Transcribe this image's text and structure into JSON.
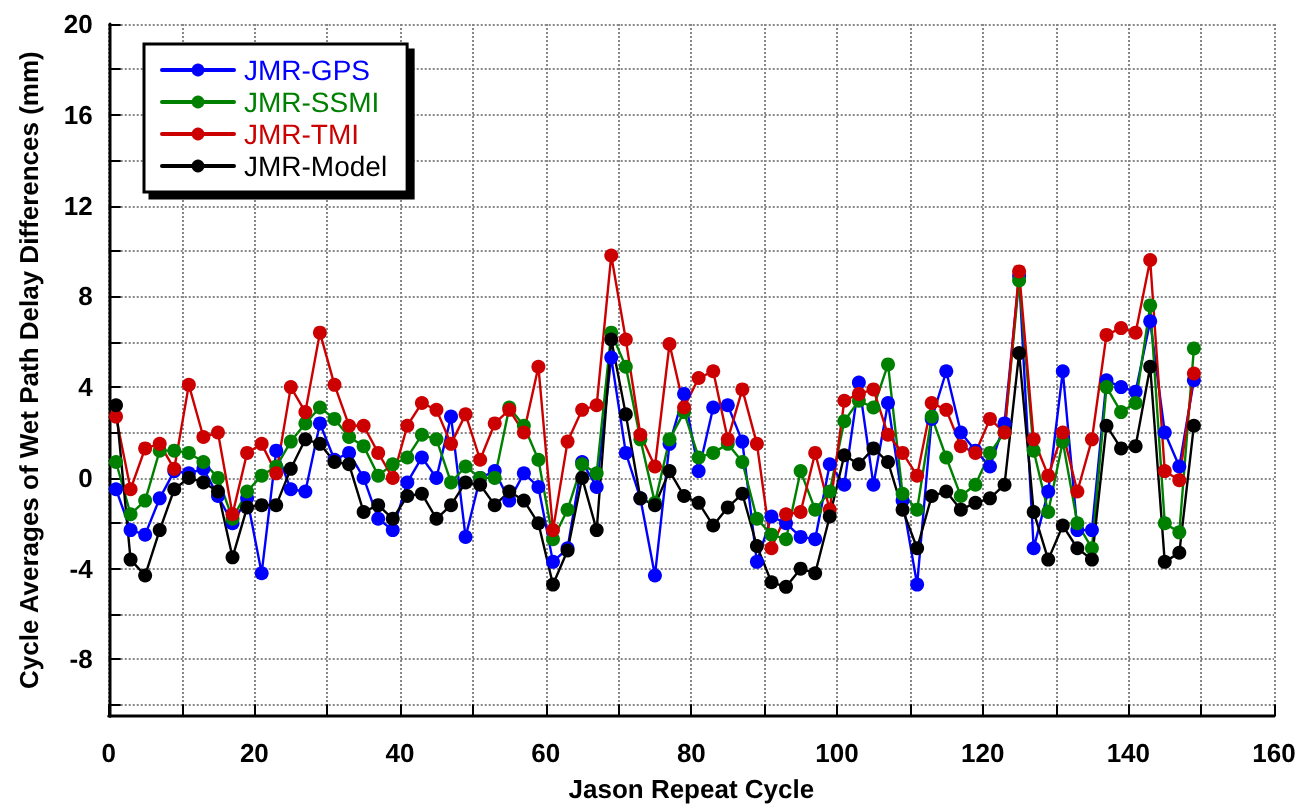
{
  "chart_data": {
    "type": "line",
    "xlabel": "Jason Repeat Cycle",
    "ylabel": "Cycle Averages of Wet Path Delay Differences (mm)",
    "x": [
      1,
      3,
      5,
      7,
      9,
      11,
      13,
      15,
      17,
      19,
      21,
      23,
      25,
      27,
      29,
      31,
      33,
      35,
      37,
      39,
      41,
      43,
      45,
      47,
      49,
      51,
      53,
      55,
      57,
      59,
      61,
      63,
      65,
      67,
      69,
      71,
      73,
      75,
      77,
      79,
      81,
      83,
      85,
      87,
      89,
      91,
      93,
      95,
      97,
      99,
      101,
      103,
      105,
      107,
      109,
      111,
      113,
      115,
      117,
      119,
      121,
      123,
      125,
      127,
      129,
      131,
      133,
      135,
      137,
      139,
      141,
      143,
      145,
      147,
      149
    ],
    "series": [
      {
        "name": "JMR-GPS",
        "color": "#0000ff",
        "values": [
          -0.5,
          -2.3,
          -2.5,
          -0.9,
          0.3,
          0.2,
          0.4,
          -0.8,
          -2.0,
          -0.9,
          -4.2,
          1.2,
          -0.5,
          -0.6,
          2.4,
          0.8,
          1.1,
          0.0,
          -1.8,
          -2.3,
          -0.2,
          0.9,
          0.0,
          2.7,
          -2.6,
          0.0,
          0.3,
          -1.0,
          0.2,
          -0.4,
          -3.7,
          -3.1,
          0.7,
          -0.4,
          5.3,
          1.1,
          -0.9,
          -4.3,
          1.5,
          3.7,
          0.3,
          3.1,
          3.2,
          1.6,
          -3.7,
          -1.7,
          -2.0,
          -2.6,
          -2.7,
          0.6,
          -0.3,
          4.2,
          -0.3,
          3.3,
          -1.0,
          -4.7,
          2.6,
          4.7,
          2.0,
          1.2,
          0.5,
          2.4,
          8.9,
          -3.1,
          -0.6,
          4.7,
          -2.3,
          -2.3,
          4.3,
          4.0,
          3.8,
          6.9,
          2.0,
          0.5,
          4.3
        ]
      },
      {
        "name": "JMR-SSMI",
        "color": "#008000",
        "values": [
          0.7,
          -1.6,
          -1.0,
          1.2,
          1.2,
          1.1,
          0.7,
          0.0,
          -1.8,
          -0.6,
          0.1,
          0.5,
          1.6,
          2.4,
          3.1,
          2.6,
          1.8,
          1.4,
          0.1,
          0.6,
          0.9,
          1.9,
          1.7,
          -0.2,
          0.5,
          0.0,
          0.0,
          3.1,
          2.3,
          0.8,
          -2.7,
          -1.4,
          0.6,
          0.2,
          6.4,
          4.9,
          1.7,
          -1.1,
          1.7,
          2.9,
          0.9,
          1.1,
          1.5,
          0.7,
          -1.8,
          -2.5,
          -2.7,
          0.3,
          -1.4,
          -0.6,
          2.5,
          3.4,
          3.1,
          5.0,
          -0.7,
          -1.4,
          2.7,
          0.9,
          -0.8,
          -0.3,
          1.1,
          2.0,
          8.7,
          1.2,
          -1.5,
          1.6,
          -2.0,
          -3.1,
          4.0,
          2.9,
          3.3,
          7.6,
          -2.0,
          -2.4,
          5.7
        ]
      },
      {
        "name": "JMR-TMI",
        "color": "#cc0000",
        "values": [
          2.7,
          -0.5,
          1.3,
          1.5,
          0.4,
          4.1,
          1.8,
          2.0,
          -1.6,
          1.1,
          1.5,
          0.2,
          4.0,
          2.9,
          6.4,
          4.1,
          2.3,
          2.3,
          1.1,
          0.0,
          2.3,
          3.3,
          3.0,
          1.5,
          2.8,
          0.8,
          2.4,
          3.0,
          2.0,
          4.9,
          -2.3,
          1.6,
          3.0,
          3.2,
          9.8,
          6.1,
          1.9,
          0.5,
          5.9,
          3.1,
          4.4,
          4.7,
          1.7,
          3.9,
          1.5,
          -3.1,
          -1.6,
          -1.5,
          1.1,
          -1.4,
          3.4,
          3.7,
          3.9,
          1.9,
          1.1,
          0.1,
          3.3,
          3.0,
          1.4,
          1.1,
          2.6,
          2.0,
          9.1,
          1.7,
          0.1,
          2.0,
          -0.6,
          1.7,
          6.3,
          6.6,
          6.4,
          9.6,
          0.3,
          -0.1,
          4.6
        ]
      },
      {
        "name": "JMR-Model",
        "color": "#000000",
        "values": [
          3.2,
          -3.6,
          -4.3,
          -2.3,
          -0.5,
          0.0,
          -0.2,
          -0.6,
          -3.5,
          -1.3,
          -1.2,
          -1.2,
          0.4,
          1.7,
          1.5,
          0.7,
          0.6,
          -1.5,
          -1.2,
          -1.8,
          -0.8,
          -0.7,
          -1.8,
          -1.2,
          -0.2,
          -0.3,
          -1.2,
          -0.6,
          -1.0,
          -2.0,
          -4.7,
          -3.2,
          0.0,
          -2.3,
          6.1,
          2.8,
          -0.9,
          -1.2,
          0.3,
          -0.8,
          -1.1,
          -2.1,
          -1.3,
          -0.7,
          -3.0,
          -4.6,
          -4.8,
          -4.0,
          -4.2,
          -1.7,
          1.0,
          0.6,
          1.3,
          0.7,
          -1.4,
          -3.1,
          -0.8,
          -0.6,
          -1.4,
          -1.1,
          -0.9,
          -0.3,
          5.5,
          -1.5,
          -3.6,
          -2.1,
          -3.1,
          -3.6,
          2.3,
          1.3,
          1.4,
          4.9,
          -3.7,
          -3.3,
          2.3
        ]
      }
    ],
    "xlim": [
      0,
      160
    ],
    "xticks": [
      0,
      {
        "value": 10,
        "label": null
      },
      20,
      {
        "value": 30,
        "label": null
      },
      40,
      {
        "value": 50,
        "label": null
      },
      60,
      {
        "value": 70,
        "label": null
      },
      80,
      {
        "value": 90,
        "label": null
      },
      100,
      {
        "value": 110,
        "label": null
      },
      120,
      {
        "value": 130,
        "label": null
      },
      140,
      {
        "value": 150,
        "label": null
      },
      160
    ],
    "ylim": [
      -10.5,
      20
    ],
    "yticks": [
      {
        "value": -10,
        "label": null
      },
      -8,
      {
        "value": -6,
        "label": null
      },
      -4,
      {
        "value": -2,
        "label": null
      },
      0,
      {
        "value": 2,
        "label": null
      },
      4,
      {
        "value": 6,
        "label": null
      },
      8,
      {
        "value": 10,
        "label": null
      },
      12,
      {
        "value": 14,
        "label": null
      },
      16,
      {
        "value": 18,
        "label": null
      },
      20
    ],
    "grid": true,
    "legend": "top left",
    "marker": "circle",
    "line_style": "solid"
  }
}
